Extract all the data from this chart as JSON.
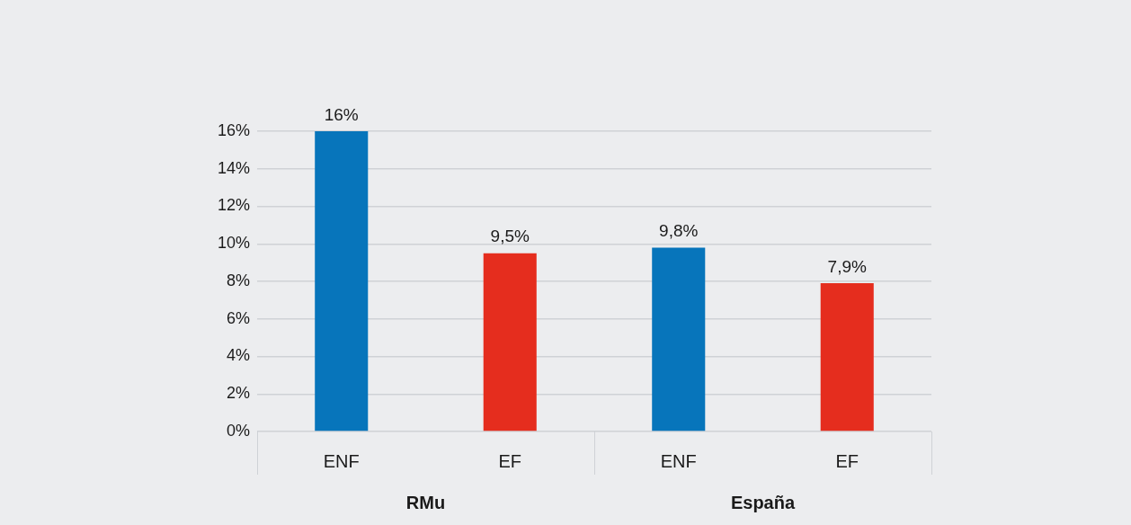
{
  "chart_data": {
    "type": "bar",
    "categories": [
      "RMu",
      "España"
    ],
    "series": [
      {
        "name": "ENF",
        "color": "#0775bb",
        "values": [
          16,
          9.8
        ],
        "value_labels": [
          "16%",
          "9,8%"
        ]
      },
      {
        "name": "EF",
        "color": "#e52d1e",
        "values": [
          9.5,
          7.9
        ],
        "value_labels": [
          "9,5%",
          "7,9%"
        ]
      }
    ],
    "ylim": [
      0,
      16
    ],
    "yticks": [
      {
        "value": 0,
        "label": "0%"
      },
      {
        "value": 2,
        "label": "2%"
      },
      {
        "value": 4,
        "label": "4%"
      },
      {
        "value": 6,
        "label": "6%"
      },
      {
        "value": 8,
        "label": "8%"
      },
      {
        "value": 10,
        "label": "10%"
      },
      {
        "value": 12,
        "label": "12%"
      },
      {
        "value": 14,
        "label": "14%"
      },
      {
        "value": 16,
        "label": "16%"
      }
    ],
    "grid": "y"
  }
}
